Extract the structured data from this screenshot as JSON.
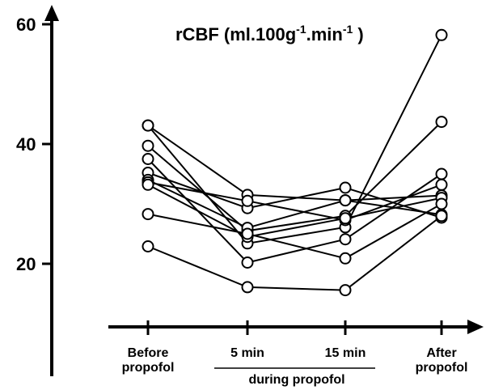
{
  "chart_data": {
    "type": "line",
    "title": "rCBF (ml.100g",
    "title_sup1": "-1",
    "title_mid": ".min",
    "title_sup2": "-1",
    "title_end": " )",
    "xlabel": "",
    "ylabel": "",
    "ylim": [
      12,
      66
    ],
    "y_ticks": [
      20,
      40,
      60
    ],
    "categories": [
      "Before propofol",
      "5 min",
      "15 min",
      "After propofol"
    ],
    "x_tick_labels": [
      [
        "Before",
        "propofol"
      ],
      [
        "5 min"
      ],
      [
        "15 min"
      ],
      [
        "After",
        "propofol"
      ]
    ],
    "group_label": "during propofol",
    "grid": false,
    "legend": "none",
    "marker": "open-circle",
    "colors": {
      "line": "#000000",
      "marker_fill": "#ffffff",
      "axis": "#000000"
    },
    "series": [
      {
        "values": [
          43.1,
          23.4,
          26.1,
          58.2
        ]
      },
      {
        "values": [
          43.1,
          31.5,
          30.6,
          28.2
        ]
      },
      {
        "values": [
          39.7,
          25.5,
          28.0,
          43.7
        ]
      },
      {
        "values": [
          37.5,
          20.2,
          24.1,
          35.0
        ]
      },
      {
        "values": [
          35.2,
          29.3,
          32.7,
          27.7
        ]
      },
      {
        "values": [
          34.0,
          26.0,
          30.6,
          31.4
        ]
      },
      {
        "values": [
          33.6,
          30.5,
          27.3,
          33.2
        ]
      },
      {
        "values": [
          33.2,
          24.5,
          27.6,
          31.0
        ]
      },
      {
        "values": [
          28.3,
          25.0,
          20.9,
          30.0
        ]
      },
      {
        "values": [
          22.9,
          16.1,
          15.6,
          28.0
        ]
      }
    ]
  }
}
